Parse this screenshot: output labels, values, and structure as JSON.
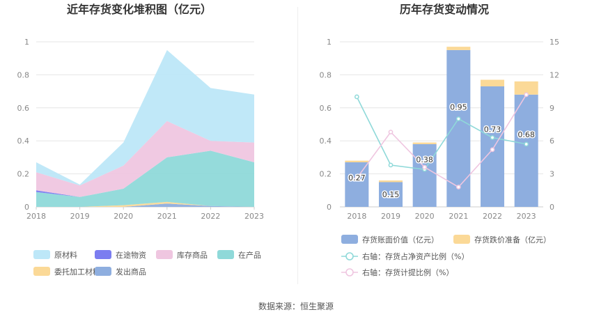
{
  "chart_data": [
    {
      "type": "area",
      "title": "近年存货变化堆积图（亿元）",
      "x": [
        "2018",
        "2019",
        "2020",
        "2021",
        "2022",
        "2023"
      ],
      "ylim": [
        0,
        1
      ],
      "yticks": [
        "0",
        "0.2",
        "0.4",
        "0.6",
        "0.8",
        "1"
      ],
      "stacked": true,
      "grid": true,
      "legend_position": "bottom",
      "series": [
        {
          "name": "发出商品",
          "color": "#8eaedf",
          "values": [
            0,
            0,
            0,
            0.02,
            0.005,
            0
          ]
        },
        {
          "name": "委托加工材料",
          "color": "#fbd997",
          "values": [
            0,
            0,
            0.01,
            0.01,
            0,
            0
          ]
        },
        {
          "name": "在产品",
          "color": "#8fd9d9",
          "values": [
            0.09,
            0.06,
            0.1,
            0.27,
            0.335,
            0.27
          ]
        },
        {
          "name": "在途物资",
          "color": "#7b7df0",
          "values": [
            0.01,
            0,
            0,
            0,
            0,
            0
          ]
        },
        {
          "name": "库存商品",
          "color": "#efc6e0",
          "values": [
            0.11,
            0.07,
            0.14,
            0.22,
            0.06,
            0.12
          ]
        },
        {
          "name": "原材料",
          "color": "#bde7f8",
          "values": [
            0.06,
            0.005,
            0.14,
            0.43,
            0.32,
            0.29
          ]
        }
      ]
    },
    {
      "type": "bar",
      "title": "历年存货变动情况",
      "categories": [
        "2018",
        "2019",
        "2020",
        "2021",
        "2022",
        "2023"
      ],
      "ylim": [
        0,
        1
      ],
      "yticks": [
        "0",
        "0.2",
        "0.4",
        "0.6",
        "0.8",
        "1"
      ],
      "y2lim": [
        0,
        15
      ],
      "y2ticks": [
        "0",
        "3",
        "6",
        "9",
        "12",
        "15"
      ],
      "stacked": true,
      "grid": true,
      "legend_position": "bottom",
      "series": [
        {
          "name": "存货账面价值（亿元）",
          "color": "#8eaedf",
          "axis": "left",
          "kind": "bar",
          "values": [
            0.27,
            0.15,
            0.38,
            0.95,
            0.73,
            0.68
          ],
          "labels": [
            "0.27",
            "0.15",
            "0.38",
            "0.95",
            "0.73",
            "0.68"
          ]
        },
        {
          "name": "存货跌价准备（亿元）",
          "color": "#fbd997",
          "axis": "left",
          "kind": "bar",
          "values": [
            0.01,
            0.01,
            0.01,
            0.02,
            0.04,
            0.08
          ]
        },
        {
          "name": "右轴：存货占净资产比例（%）",
          "color": "#8fd9d9",
          "axis": "right",
          "kind": "line",
          "values": [
            10.0,
            3.8,
            3.4,
            8.0,
            6.3,
            5.7
          ]
        },
        {
          "name": "右轴：存货计提比例（%）",
          "color": "#efc6e0",
          "axis": "right",
          "kind": "line",
          "values": [
            2.6,
            6.8,
            3.6,
            1.8,
            5.2,
            10.2
          ]
        }
      ]
    }
  ],
  "source_text": "数据来源：恒生聚源"
}
